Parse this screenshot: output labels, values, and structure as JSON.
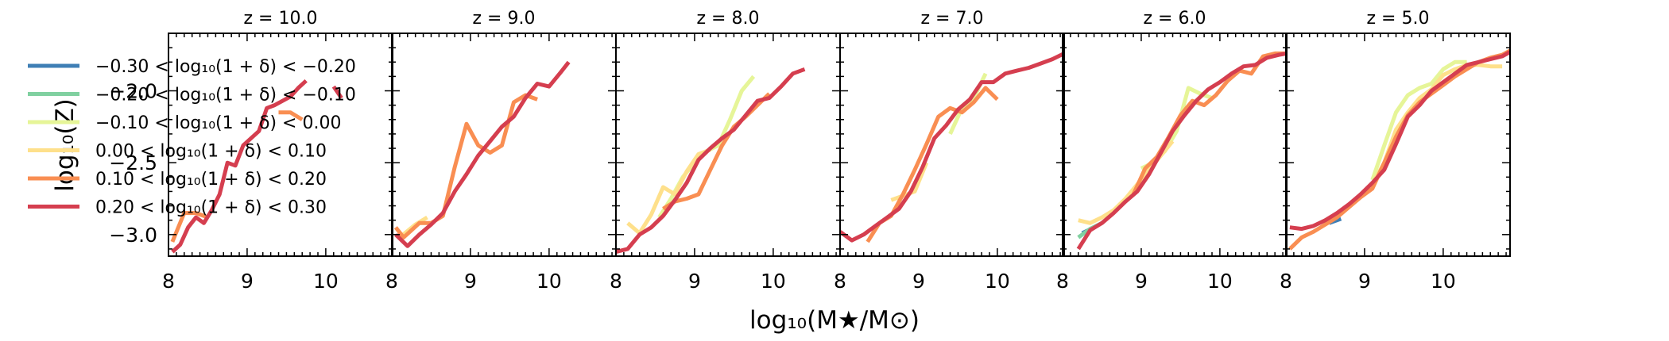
{
  "figure": {
    "xlabel": "log₁₀(M★/M⊙)",
    "ylabel": "log₁₀(Z)"
  },
  "legend": {
    "placement": "left",
    "entries": [
      {
        "label": "−0.30 < log₁₀(1 + δ) < −0.20",
        "color": "#3f7fb5"
      },
      {
        "label": "−0.20 < log₁₀(1 + δ) < −0.10",
        "color": "#80d0a0"
      },
      {
        "label": "−0.10 < log₁₀(1 + δ) < 0.00",
        "color": "#e6f598"
      },
      {
        "label": "0.00 < log₁₀(1 + δ) < 0.10",
        "color": "#fee08b"
      },
      {
        "label": "0.10 < log₁₀(1 + δ) < 0.20",
        "color": "#f98e52"
      },
      {
        "label": "0.20 < log₁₀(1 + δ) < 0.30",
        "color": "#d53e4f"
      }
    ]
  },
  "chart_data": [
    {
      "type": "line",
      "title": "z = 10.0",
      "xlim": [
        8.0,
        10.85
      ],
      "ylim": [
        -3.15,
        -1.6
      ],
      "xticks": [
        8,
        9,
        10
      ],
      "yticks": [
        -3.0,
        -2.5,
        -2.0
      ],
      "yticklabels": [
        "−3.0",
        "−2.5",
        "−2.0"
      ],
      "series": [
        {
          "legend_index": 4,
          "x": [
            8.05,
            8.2,
            8.35,
            8.5
          ],
          "y": [
            -3.05,
            -2.85,
            -2.85,
            -2.88
          ]
        },
        {
          "legend_index": 4,
          "x": [
            9.4,
            9.55,
            9.7
          ],
          "y": [
            -2.15,
            -2.15,
            -2.2
          ]
        },
        {
          "legend_index": 5,
          "x": [
            8.05,
            8.15,
            8.25,
            8.35,
            8.45,
            8.55,
            8.65,
            8.75,
            8.85,
            8.95,
            9.05,
            9.15,
            9.25,
            9.35,
            9.45,
            9.55,
            9.65,
            9.75
          ],
          "y": [
            -3.12,
            -3.07,
            -2.95,
            -2.88,
            -2.92,
            -2.83,
            -2.72,
            -2.5,
            -2.52,
            -2.38,
            -2.33,
            -2.28,
            -2.12,
            -2.1,
            -2.07,
            -2.04,
            -1.98,
            -1.93
          ]
        },
        {
          "legend_index": 5,
          "x": [
            10.1,
            10.2
          ],
          "y": [
            -1.97,
            -2.05
          ]
        }
      ]
    },
    {
      "type": "line",
      "title": "z = 9.0",
      "xlim": [
        8.0,
        10.85
      ],
      "ylim": [
        -3.15,
        -1.6
      ],
      "xticks": [
        8,
        9,
        10
      ],
      "yticks": [
        -3.0,
        -2.5,
        -2.0
      ],
      "series": [
        {
          "legend_index": 3,
          "x": [
            8.1,
            8.3,
            8.45
          ],
          "y": [
            -3.02,
            -2.93,
            -2.88
          ]
        },
        {
          "legend_index": 4,
          "x": [
            8.05,
            8.15,
            8.25,
            8.35,
            8.5,
            8.65,
            8.8,
            8.95,
            9.1,
            9.25,
            9.4,
            9.55,
            9.7,
            9.85
          ],
          "y": [
            -2.95,
            -3.02,
            -2.97,
            -2.92,
            -2.92,
            -2.87,
            -2.53,
            -2.23,
            -2.38,
            -2.43,
            -2.38,
            -2.08,
            -2.03,
            -2.06
          ]
        },
        {
          "legend_index": 5,
          "x": [
            8.05,
            8.2,
            8.35,
            8.5,
            8.65,
            8.8,
            8.95,
            9.1,
            9.25,
            9.4,
            9.55,
            9.7,
            9.85,
            10.0,
            10.15,
            10.25
          ],
          "y": [
            -3.0,
            -3.08,
            -3.0,
            -2.93,
            -2.85,
            -2.7,
            -2.58,
            -2.45,
            -2.35,
            -2.25,
            -2.18,
            -2.05,
            -1.95,
            -1.97,
            -1.87,
            -1.8
          ]
        }
      ]
    },
    {
      "type": "line",
      "title": "z = 8.0",
      "xlim": [
        8.0,
        10.85
      ],
      "ylim": [
        -3.15,
        -1.6
      ],
      "xticks": [
        8,
        9,
        10
      ],
      "yticks": [
        -3.0,
        -2.5,
        -2.0
      ],
      "series": [
        {
          "legend_index": 2,
          "x": [
            8.55,
            8.7,
            8.85,
            9.0,
            9.15,
            9.3,
            9.45,
            9.6,
            9.75
          ],
          "y": [
            -2.88,
            -2.75,
            -2.6,
            -2.5,
            -2.42,
            -2.38,
            -2.2,
            -2.0,
            -1.9
          ]
        },
        {
          "legend_index": 3,
          "x": [
            8.15,
            8.3,
            8.45,
            8.6,
            8.75,
            8.9,
            9.05,
            9.2
          ],
          "y": [
            -2.92,
            -2.99,
            -2.86,
            -2.67,
            -2.72,
            -2.56,
            -2.44,
            -2.41
          ]
        },
        {
          "legend_index": 4,
          "x": [
            8.6,
            8.75,
            8.9,
            9.05,
            9.2,
            9.35,
            9.5,
            9.65,
            9.8,
            9.95
          ],
          "y": [
            -2.82,
            -2.77,
            -2.75,
            -2.72,
            -2.55,
            -2.38,
            -2.25,
            -2.18,
            -2.1,
            -2.02
          ]
        },
        {
          "legend_index": 5,
          "x": [
            8.0,
            8.15,
            8.3,
            8.45,
            8.6,
            8.75,
            8.9,
            9.05,
            9.2,
            9.35,
            9.5,
            9.65,
            9.8,
            9.95,
            10.1,
            10.25,
            10.4
          ],
          "y": [
            -3.12,
            -3.1,
            -3.0,
            -2.95,
            -2.87,
            -2.76,
            -2.64,
            -2.48,
            -2.4,
            -2.33,
            -2.27,
            -2.17,
            -2.07,
            -2.05,
            -1.97,
            -1.88,
            -1.85
          ]
        }
      ]
    },
    {
      "type": "line",
      "title": "z = 7.0",
      "xlim": [
        8.0,
        10.85
      ],
      "ylim": [
        -3.15,
        -1.6
      ],
      "xticks": [
        8,
        9,
        10
      ],
      "yticks": [
        -3.0,
        -2.5,
        -2.0
      ],
      "series": [
        {
          "legend_index": 2,
          "x": [
            9.4,
            9.55,
            9.7,
            9.85
          ],
          "y": [
            -2.3,
            -2.12,
            -2.05,
            -1.88
          ]
        },
        {
          "legend_index": 3,
          "x": [
            8.65,
            8.8,
            8.95,
            9.1
          ],
          "y": [
            -2.76,
            -2.73,
            -2.7,
            -2.5
          ]
        },
        {
          "legend_index": 4,
          "x": [
            8.35,
            8.5,
            8.65,
            8.8,
            8.95,
            9.1,
            9.25,
            9.4,
            9.55,
            9.7,
            9.85,
            10.0
          ],
          "y": [
            -3.05,
            -2.92,
            -2.87,
            -2.72,
            -2.55,
            -2.37,
            -2.18,
            -2.12,
            -2.15,
            -2.08,
            -1.98,
            -2.06
          ]
        },
        {
          "legend_index": 5,
          "x": [
            8.0,
            8.15,
            8.3,
            8.45,
            8.6,
            8.75,
            8.9,
            9.05,
            9.2,
            9.35,
            9.5,
            9.65,
            9.8,
            9.95,
            10.1,
            10.25,
            10.4,
            10.55,
            10.7,
            10.85
          ],
          "y": [
            -2.98,
            -3.04,
            -3.0,
            -2.94,
            -2.88,
            -2.82,
            -2.7,
            -2.53,
            -2.33,
            -2.24,
            -2.13,
            -2.06,
            -1.94,
            -1.94,
            -1.88,
            -1.86,
            -1.84,
            -1.81,
            -1.78,
            -1.74
          ]
        }
      ]
    },
    {
      "type": "line",
      "title": "z = 6.0",
      "xlim": [
        8.0,
        10.85
      ],
      "ylim": [
        -3.15,
        -1.6
      ],
      "xticks": [
        8,
        9,
        10
      ],
      "yticks": [
        -3.0,
        -2.5,
        -2.0
      ],
      "series": [
        {
          "legend_index": 0,
          "x": [
            8.25,
            8.4
          ],
          "y": [
            -2.99,
            -2.95
          ]
        },
        {
          "legend_index": 1,
          "x": [
            8.2,
            8.35,
            8.5
          ],
          "y": [
            -3.02,
            -2.96,
            -2.92
          ]
        },
        {
          "legend_index": 2,
          "x": [
            9.0,
            9.15,
            9.3,
            9.45,
            9.6,
            9.75,
            9.9
          ],
          "y": [
            -2.54,
            -2.5,
            -2.42,
            -2.28,
            -1.98,
            -2.02,
            -2.05
          ]
        },
        {
          "legend_index": 3,
          "x": [
            8.2,
            8.35,
            8.5,
            8.65,
            8.8,
            8.95,
            9.1,
            9.25,
            9.4
          ],
          "y": [
            -2.9,
            -2.92,
            -2.88,
            -2.83,
            -2.75,
            -2.65,
            -2.55,
            -2.45,
            -2.35
          ]
        },
        {
          "legend_index": 4,
          "x": [
            8.9,
            9.05,
            9.2,
            9.35,
            9.5,
            9.65,
            9.8,
            9.95,
            10.1,
            10.25,
            10.4,
            10.55,
            10.7,
            10.85
          ],
          "y": [
            -2.72,
            -2.54,
            -2.46,
            -2.32,
            -2.17,
            -2.07,
            -2.1,
            -2.03,
            -1.93,
            -1.86,
            -1.88,
            -1.76,
            -1.74,
            -1.74
          ]
        },
        {
          "legend_index": 5,
          "x": [
            8.2,
            8.35,
            8.5,
            8.65,
            8.8,
            8.95,
            9.1,
            9.25,
            9.4,
            9.55,
            9.7,
            9.85,
            10.0,
            10.15,
            10.3,
            10.45,
            10.6,
            10.75,
            10.85
          ],
          "y": [
            -3.1,
            -2.97,
            -2.92,
            -2.85,
            -2.77,
            -2.7,
            -2.58,
            -2.43,
            -2.28,
            -2.17,
            -2.07,
            -1.99,
            -1.94,
            -1.88,
            -1.83,
            -1.82,
            -1.77,
            -1.75,
            -1.74
          ]
        }
      ]
    },
    {
      "type": "line",
      "title": "z = 5.0",
      "xlim": [
        8.0,
        10.85
      ],
      "ylim": [
        -3.15,
        -1.6
      ],
      "xticks": [
        8,
        9,
        10
      ],
      "yticks": [
        -3.0,
        -2.5,
        -2.0
      ],
      "series": [
        {
          "legend_index": 0,
          "x": [
            8.55,
            8.7
          ],
          "y": [
            -2.92,
            -2.89
          ]
        },
        {
          "legend_index": 1,
          "x": [
            8.5,
            8.65
          ],
          "y": [
            -2.9,
            -2.87
          ]
        },
        {
          "legend_index": 2,
          "x": [
            9.1,
            9.25,
            9.4,
            9.55,
            9.7,
            9.85,
            10.0,
            10.15,
            10.3
          ],
          "y": [
            -2.62,
            -2.38,
            -2.15,
            -2.03,
            -1.98,
            -1.95,
            -1.85,
            -1.8,
            -1.8
          ]
        },
        {
          "legend_index": 3,
          "x": [
            9.1,
            9.25,
            9.4,
            9.55,
            9.7,
            9.85,
            10.0,
            10.15,
            10.3,
            10.45,
            10.6,
            10.75
          ],
          "y": [
            -2.65,
            -2.5,
            -2.27,
            -2.15,
            -2.05,
            -1.99,
            -1.89,
            -1.85,
            -1.82,
            -1.82,
            -1.83,
            -1.83
          ]
        },
        {
          "legend_index": 4,
          "x": [
            8.05,
            8.2,
            8.35,
            8.5,
            8.65,
            8.8,
            8.95,
            9.1,
            9.25,
            9.4,
            9.55,
            9.7,
            9.85,
            10.0,
            10.15,
            10.3,
            10.45,
            10.6,
            10.75,
            10.85
          ],
          "y": [
            -3.1,
            -3.02,
            -2.98,
            -2.93,
            -2.88,
            -2.81,
            -2.74,
            -2.68,
            -2.5,
            -2.32,
            -2.17,
            -2.08,
            -2.02,
            -1.96,
            -1.9,
            -1.85,
            -1.8,
            -1.77,
            -1.75,
            -1.72
          ]
        },
        {
          "legend_index": 5,
          "x": [
            8.05,
            8.2,
            8.35,
            8.5,
            8.65,
            8.8,
            8.95,
            9.1,
            9.25,
            9.4,
            9.55,
            9.7,
            9.85,
            10.0,
            10.15,
            10.3,
            10.45,
            10.6,
            10.75,
            10.85
          ],
          "y": [
            -2.95,
            -2.96,
            -2.94,
            -2.9,
            -2.85,
            -2.79,
            -2.72,
            -2.64,
            -2.55,
            -2.37,
            -2.18,
            -2.1,
            -2.0,
            -1.94,
            -1.88,
            -1.82,
            -1.8,
            -1.78,
            -1.76,
            -1.73
          ]
        }
      ]
    }
  ]
}
